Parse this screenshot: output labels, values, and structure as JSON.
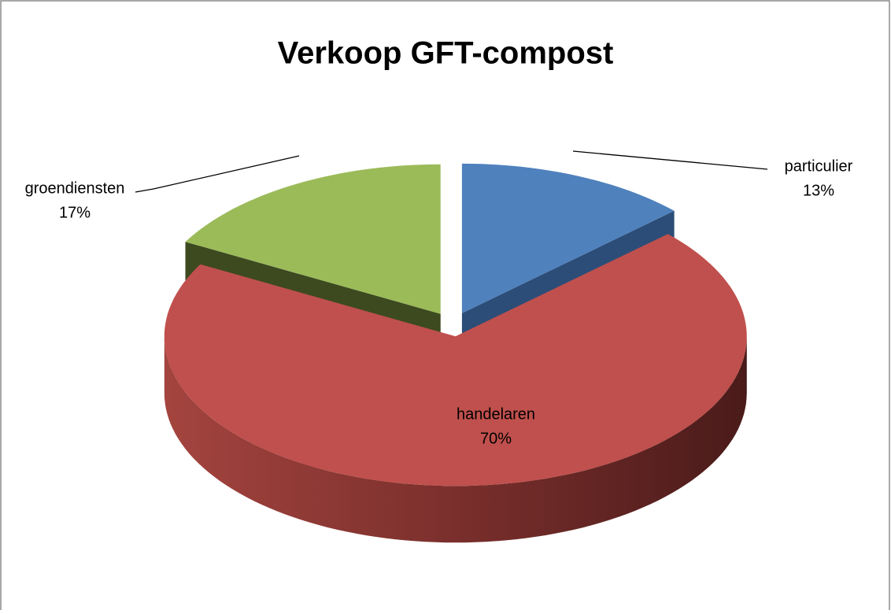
{
  "chart_data": {
    "type": "pie",
    "title": "Verkoop GFT-compost",
    "categories": [
      "particulier",
      "handelaren",
      "groendiensten"
    ],
    "values": [
      13,
      70,
      17
    ],
    "value_labels": [
      "13%",
      "70%",
      "17%"
    ],
    "colors": [
      "#4f81bd",
      "#c0504d",
      "#9bbb59"
    ]
  }
}
